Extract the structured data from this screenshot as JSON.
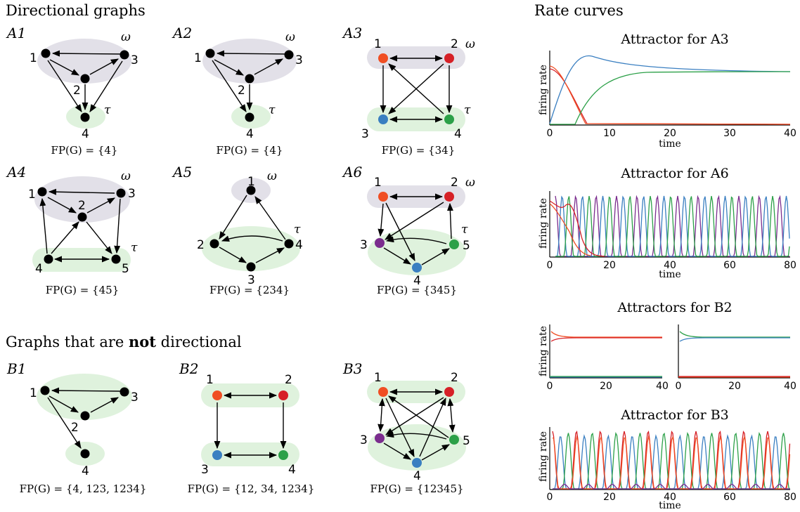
{
  "headings": {
    "directional": "Directional graphs",
    "not_directional_pre": "Graphs that are ",
    "not_directional_bold": "not",
    "not_directional_post": " directional",
    "rate_curves": "Rate curves"
  },
  "colors": {
    "node_black": "#000000",
    "node_orange": "#f04e23",
    "node_red": "#d62027",
    "node_blue": "#3a7fc1",
    "node_green": "#2ca048",
    "node_purple": "#7b2d8e",
    "omega_region": "#e2e0e8",
    "tau_region": "#dff2dd"
  },
  "graphs": [
    {
      "name": "A1",
      "fp": "FP(G) = {4}",
      "omega": "ω",
      "tau": "τ",
      "nodes": [
        {
          "label": "1"
        },
        {
          "label": "2"
        },
        {
          "label": "3"
        },
        {
          "label": "4"
        }
      ]
    },
    {
      "name": "A2",
      "fp": "FP(G) = {4}",
      "omega": "ω",
      "tau": "τ",
      "nodes": [
        {
          "label": "1"
        },
        {
          "label": "2"
        },
        {
          "label": "3"
        },
        {
          "label": "4"
        }
      ]
    },
    {
      "name": "A3",
      "fp": "FP(G) = {34}",
      "omega": "ω",
      "tau": "τ",
      "nodes": [
        {
          "label": "1",
          "color": "orange"
        },
        {
          "label": "2",
          "color": "red"
        },
        {
          "label": "3",
          "color": "blue"
        },
        {
          "label": "4",
          "color": "green"
        }
      ]
    },
    {
      "name": "A4",
      "fp": "FP(G) = {45}",
      "omega": "ω",
      "tau": "τ",
      "nodes": [
        {
          "label": "1"
        },
        {
          "label": "2"
        },
        {
          "label": "3"
        },
        {
          "label": "4"
        },
        {
          "label": "5"
        }
      ]
    },
    {
      "name": "A5",
      "fp": "FP(G) = {234}",
      "omega": "ω",
      "tau": "τ",
      "nodes": [
        {
          "label": "1"
        },
        {
          "label": "2"
        },
        {
          "label": "3"
        },
        {
          "label": "4"
        }
      ]
    },
    {
      "name": "A6",
      "fp": "FP(G) = {345}",
      "omega": "ω",
      "tau": "τ",
      "nodes": [
        {
          "label": "1",
          "color": "orange"
        },
        {
          "label": "2",
          "color": "red"
        },
        {
          "label": "3",
          "color": "purple"
        },
        {
          "label": "4",
          "color": "blue"
        },
        {
          "label": "5",
          "color": "green"
        }
      ]
    },
    {
      "name": "B1",
      "fp": "FP(G) = {4, 123, 1234}",
      "nodes": [
        {
          "label": "1"
        },
        {
          "label": "2"
        },
        {
          "label": "3"
        },
        {
          "label": "4"
        }
      ]
    },
    {
      "name": "B2",
      "fp": "FP(G) = {12, 34, 1234}",
      "nodes": [
        {
          "label": "1",
          "color": "orange"
        },
        {
          "label": "2",
          "color": "red"
        },
        {
          "label": "3",
          "color": "blue"
        },
        {
          "label": "4",
          "color": "green"
        }
      ]
    },
    {
      "name": "B3",
      "fp": "FP(G) = {12345}",
      "nodes": [
        {
          "label": "1",
          "color": "orange"
        },
        {
          "label": "2",
          "color": "red"
        },
        {
          "label": "3",
          "color": "purple"
        },
        {
          "label": "4",
          "color": "blue"
        },
        {
          "label": "5",
          "color": "green"
        }
      ]
    }
  ],
  "charts": [
    {
      "title": "Attractor for A3",
      "ylabel": "firing rate",
      "xlabel": "time",
      "xticks": [
        "0",
        "10",
        "20",
        "30",
        "40"
      ],
      "xlim": [
        0,
        40
      ]
    },
    {
      "title": "Attractor for A6",
      "ylabel": "firing rate",
      "xlabel": "time",
      "xticks": [
        "0",
        "20",
        "40",
        "60",
        "80"
      ],
      "xlim": [
        0,
        80
      ]
    },
    {
      "title": "Attractors for B2",
      "ylabel": "firing rate",
      "xticks_left": [
        "0",
        "20",
        "40"
      ],
      "xticks_right": [
        "0",
        "20",
        "40"
      ],
      "xlim": [
        0,
        40
      ]
    },
    {
      "title": "Attractor for B3",
      "ylabel": "firing rate",
      "xlabel": "time",
      "xticks": [
        "0",
        "20",
        "40",
        "60",
        "80"
      ],
      "xlim": [
        0,
        80
      ]
    }
  ]
}
